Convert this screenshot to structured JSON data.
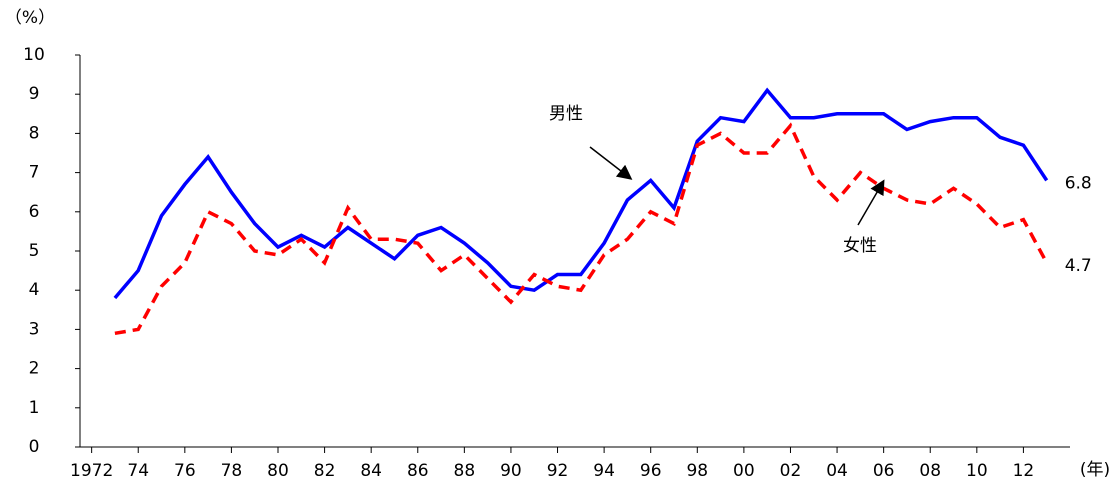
{
  "chart_data": {
    "type": "line",
    "y_label": "（%）",
    "x_label": "(年)",
    "x": [
      1973,
      1974,
      1975,
      1976,
      1977,
      1978,
      1979,
      1980,
      1981,
      1982,
      1983,
      1984,
      1985,
      1986,
      1987,
      1988,
      1989,
      1990,
      1991,
      1992,
      1993,
      1994,
      1995,
      1996,
      1997,
      1998,
      1999,
      2000,
      2001,
      2002,
      2003,
      2004,
      2005,
      2006,
      2007,
      2008,
      2009,
      2010,
      2011,
      2012,
      2013
    ],
    "series": [
      {
        "name": "男性",
        "color": "#0000ff",
        "dash": false,
        "values": [
          3.8,
          4.5,
          5.9,
          6.7,
          7.4,
          6.5,
          5.7,
          5.1,
          5.4,
          5.1,
          5.6,
          5.2,
          4.8,
          5.4,
          5.6,
          5.2,
          4.7,
          4.1,
          4.0,
          4.4,
          4.4,
          5.2,
          6.3,
          6.8,
          6.1,
          7.8,
          8.4,
          8.3,
          9.1,
          8.4,
          8.4,
          8.5,
          8.5,
          8.5,
          8.1,
          8.3,
          8.4,
          8.4,
          7.9,
          7.7,
          6.8
        ]
      },
      {
        "name": "女性",
        "color": "#ff0000",
        "dash": true,
        "values": [
          2.9,
          3.0,
          4.1,
          4.7,
          6.0,
          5.7,
          5.0,
          4.9,
          5.3,
          4.7,
          6.1,
          5.3,
          5.3,
          5.2,
          4.5,
          4.9,
          4.3,
          3.7,
          4.4,
          4.1,
          4.0,
          4.9,
          5.3,
          6.0,
          5.7,
          7.7,
          8.0,
          7.5,
          7.5,
          8.2,
          6.9,
          6.3,
          7.0,
          6.6,
          6.3,
          6.2,
          6.6,
          6.2,
          5.6,
          5.8,
          4.7
        ]
      }
    ],
    "xlim": [
      1971.5,
      2014
    ],
    "xticks": [
      {
        "value": 1972,
        "label": "1972"
      },
      {
        "value": 1974,
        "label": "74"
      },
      {
        "value": 1976,
        "label": "76"
      },
      {
        "value": 1978,
        "label": "78"
      },
      {
        "value": 1980,
        "label": "80"
      },
      {
        "value": 1982,
        "label": "82"
      },
      {
        "value": 1984,
        "label": "84"
      },
      {
        "value": 1986,
        "label": "86"
      },
      {
        "value": 1988,
        "label": "88"
      },
      {
        "value": 1990,
        "label": "90"
      },
      {
        "value": 1992,
        "label": "92"
      },
      {
        "value": 1994,
        "label": "94"
      },
      {
        "value": 1996,
        "label": "96"
      },
      {
        "value": 1998,
        "label": "98"
      },
      {
        "value": 2000,
        "label": "00"
      },
      {
        "value": 2002,
        "label": "02"
      },
      {
        "value": 2004,
        "label": "04"
      },
      {
        "value": 2006,
        "label": "06"
      },
      {
        "value": 2008,
        "label": "08"
      },
      {
        "value": 2010,
        "label": "10"
      },
      {
        "value": 2012,
        "label": "12"
      }
    ],
    "ylim": [
      0,
      10
    ],
    "yticks": [
      0,
      1,
      2,
      3,
      4,
      5,
      6,
      7,
      8,
      9,
      10
    ],
    "grid": false
  }
}
